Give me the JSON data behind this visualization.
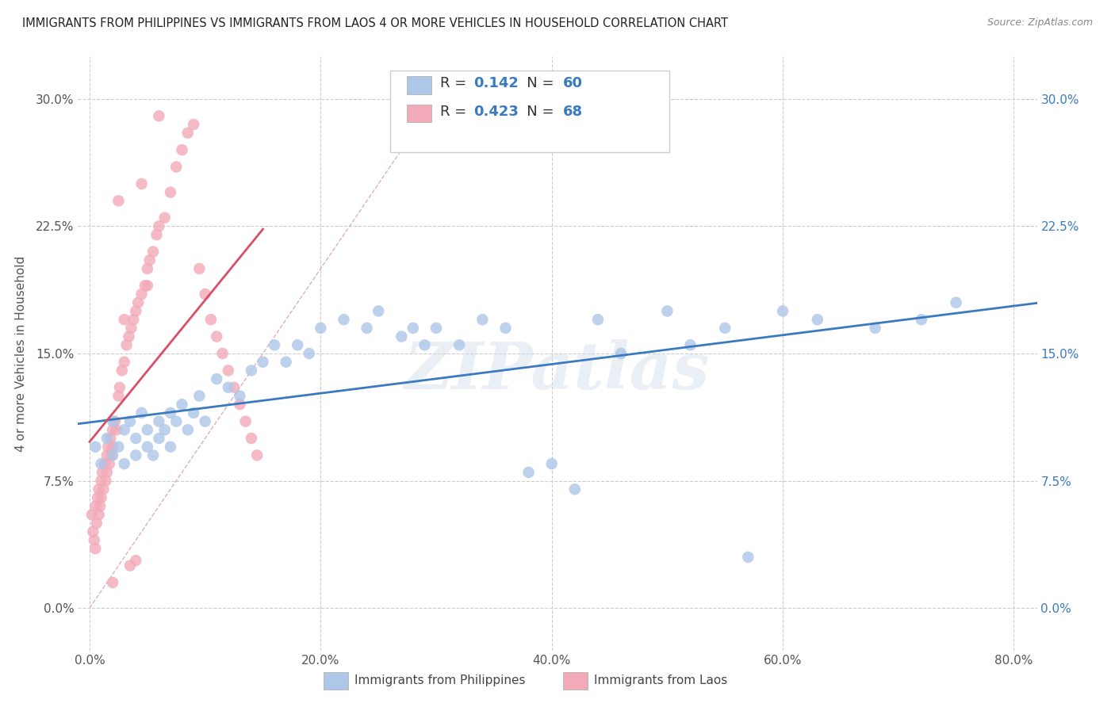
{
  "title": "IMMIGRANTS FROM PHILIPPINES VS IMMIGRANTS FROM LAOS 4 OR MORE VEHICLES IN HOUSEHOLD CORRELATION CHART",
  "source": "Source: ZipAtlas.com",
  "ylabel": "4 or more Vehicles in Household",
  "xlabel_ticks": [
    "0.0%",
    "20.0%",
    "40.0%",
    "60.0%",
    "80.0%"
  ],
  "xlabel_vals": [
    0.0,
    0.2,
    0.4,
    0.6,
    0.8
  ],
  "ylabel_ticks": [
    "0.0%",
    "7.5%",
    "15.0%",
    "22.5%",
    "30.0%"
  ],
  "ylabel_vals": [
    0.0,
    0.075,
    0.15,
    0.225,
    0.3
  ],
  "xlim": [
    -0.01,
    0.82
  ],
  "ylim": [
    -0.025,
    0.325
  ],
  "R_blue": 0.142,
  "N_blue": 60,
  "R_pink": 0.423,
  "N_pink": 68,
  "blue_color": "#aec6e8",
  "pink_color": "#f2aab8",
  "blue_line_color": "#3a7abf",
  "pink_line_color": "#d94f6a",
  "diagonal_color": "#e0b0b8",
  "watermark": "ZIPatlas",
  "blue_scatter_x": [
    0.005,
    0.01,
    0.015,
    0.02,
    0.02,
    0.025,
    0.03,
    0.03,
    0.035,
    0.04,
    0.04,
    0.045,
    0.05,
    0.05,
    0.055,
    0.06,
    0.06,
    0.065,
    0.07,
    0.07,
    0.075,
    0.08,
    0.085,
    0.09,
    0.095,
    0.1,
    0.11,
    0.12,
    0.13,
    0.14,
    0.15,
    0.16,
    0.17,
    0.18,
    0.19,
    0.2,
    0.22,
    0.24,
    0.25,
    0.27,
    0.28,
    0.29,
    0.3,
    0.32,
    0.34,
    0.36,
    0.38,
    0.4,
    0.42,
    0.44,
    0.46,
    0.5,
    0.52,
    0.55,
    0.57,
    0.6,
    0.63,
    0.68,
    0.72,
    0.75
  ],
  "blue_scatter_y": [
    0.095,
    0.085,
    0.1,
    0.09,
    0.11,
    0.095,
    0.085,
    0.105,
    0.11,
    0.09,
    0.1,
    0.115,
    0.095,
    0.105,
    0.09,
    0.1,
    0.11,
    0.105,
    0.095,
    0.115,
    0.11,
    0.12,
    0.105,
    0.115,
    0.125,
    0.11,
    0.135,
    0.13,
    0.125,
    0.14,
    0.145,
    0.155,
    0.145,
    0.155,
    0.15,
    0.165,
    0.17,
    0.165,
    0.175,
    0.16,
    0.165,
    0.155,
    0.165,
    0.155,
    0.17,
    0.165,
    0.08,
    0.085,
    0.07,
    0.17,
    0.15,
    0.175,
    0.155,
    0.165,
    0.03,
    0.175,
    0.17,
    0.165,
    0.17,
    0.18
  ],
  "pink_scatter_x": [
    0.002,
    0.003,
    0.004,
    0.005,
    0.005,
    0.006,
    0.007,
    0.008,
    0.008,
    0.009,
    0.01,
    0.01,
    0.011,
    0.012,
    0.013,
    0.014,
    0.015,
    0.015,
    0.016,
    0.017,
    0.018,
    0.019,
    0.02,
    0.02,
    0.022,
    0.023,
    0.025,
    0.026,
    0.028,
    0.03,
    0.032,
    0.034,
    0.036,
    0.038,
    0.04,
    0.042,
    0.045,
    0.048,
    0.05,
    0.052,
    0.055,
    0.058,
    0.06,
    0.065,
    0.07,
    0.075,
    0.08,
    0.085,
    0.09,
    0.095,
    0.1,
    0.105,
    0.11,
    0.115,
    0.12,
    0.125,
    0.13,
    0.135,
    0.14,
    0.145,
    0.06,
    0.045,
    0.05,
    0.03,
    0.025,
    0.035,
    0.04,
    0.02
  ],
  "pink_scatter_y": [
    0.055,
    0.045,
    0.04,
    0.06,
    0.035,
    0.05,
    0.065,
    0.055,
    0.07,
    0.06,
    0.075,
    0.065,
    0.08,
    0.07,
    0.085,
    0.075,
    0.09,
    0.08,
    0.095,
    0.085,
    0.1,
    0.09,
    0.105,
    0.095,
    0.11,
    0.105,
    0.125,
    0.13,
    0.14,
    0.145,
    0.155,
    0.16,
    0.165,
    0.17,
    0.175,
    0.18,
    0.185,
    0.19,
    0.2,
    0.205,
    0.21,
    0.22,
    0.225,
    0.23,
    0.245,
    0.26,
    0.27,
    0.28,
    0.285,
    0.2,
    0.185,
    0.17,
    0.16,
    0.15,
    0.14,
    0.13,
    0.12,
    0.11,
    0.1,
    0.09,
    0.29,
    0.25,
    0.19,
    0.17,
    0.24,
    0.025,
    0.028,
    0.015
  ],
  "legend_label_blue": "Immigrants from Philippines",
  "legend_label_pink": "Immigrants from Laos"
}
